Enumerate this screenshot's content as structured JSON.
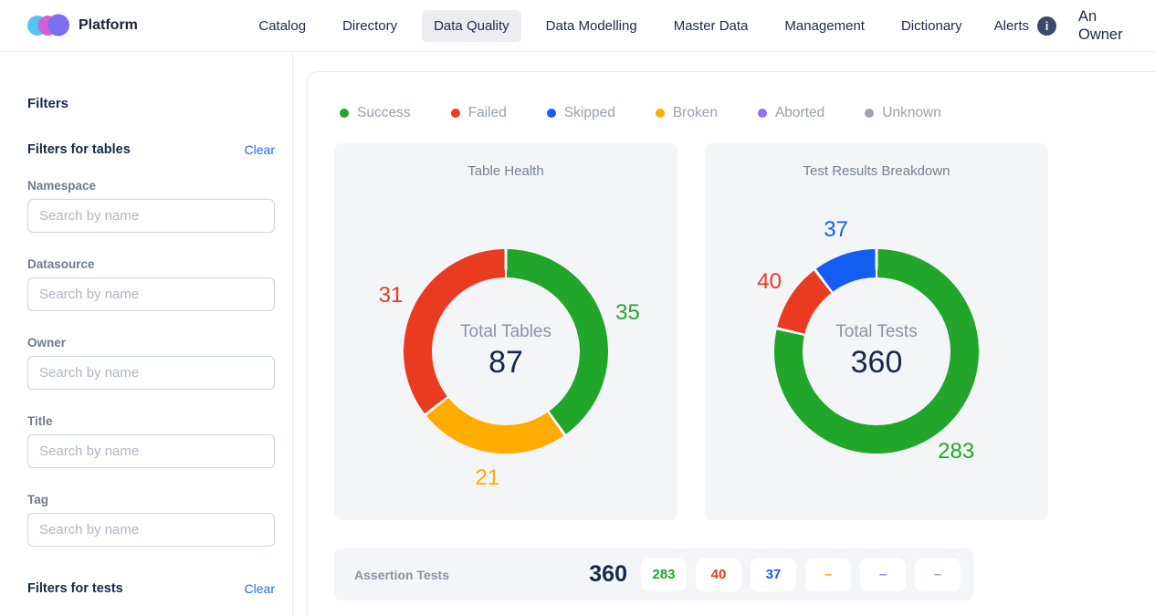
{
  "colors": {
    "link": "#2368E9",
    "navy": "#15294B",
    "border": "#E9EBEF",
    "cardbg": "#F4F5F7",
    "muted": "#8A94A3",
    "legendText": "#98A2AF",
    "fieldLabel": "#6F7B90",
    "navText": "#202C4E",
    "activeTabBg": "#ECEDF1",
    "infoIconBg": "#3A4B69",
    "brandBlue": "#56C3F5",
    "brandPink": "#CE63D8",
    "brandPurple": "#7C6FEF"
  },
  "header": {
    "brand": "Platform",
    "nav": [
      {
        "label": "Catalog",
        "active": false
      },
      {
        "label": "Directory",
        "active": false
      },
      {
        "label": "Data Quality",
        "active": true
      },
      {
        "label": "Data Modelling",
        "active": false
      },
      {
        "label": "Master Data",
        "active": false
      },
      {
        "label": "Management",
        "active": false
      },
      {
        "label": "Dictionary",
        "active": false
      }
    ],
    "alerts_label": "Alerts",
    "user": "An Owner"
  },
  "sidebar": {
    "title": "Filters",
    "sections": [
      {
        "title": "Filters for tables",
        "clear_label": "Clear",
        "fields": [
          {
            "label": "Namespace",
            "placeholder": "Search by name",
            "value": ""
          },
          {
            "label": "Datasource",
            "placeholder": "Search by name",
            "value": ""
          },
          {
            "label": "Owner",
            "placeholder": "Search by name",
            "value": ""
          },
          {
            "label": "Title",
            "placeholder": "Search by name",
            "value": ""
          },
          {
            "label": "Tag",
            "placeholder": "Search by name",
            "value": ""
          }
        ]
      },
      {
        "title": "Filters for tests",
        "clear_label": "Clear",
        "fields": []
      }
    ]
  },
  "legend": [
    {
      "label": "Success",
      "color": "#22A52B"
    },
    {
      "label": "Failed",
      "color": "#EB3A22"
    },
    {
      "label": "Skipped",
      "color": "#135EF0"
    },
    {
      "label": "Broken",
      "color": "#FFAB00"
    },
    {
      "label": "Aborted",
      "color": "#8E70F0"
    },
    {
      "label": "Unknown",
      "color": "#9BA3AF"
    }
  ],
  "chart_data": [
    {
      "type": "donut",
      "title": "Table Health",
      "center_label": "Total Tables",
      "total": 87,
      "start_angle_deg": 0,
      "direction": "clockwise",
      "segments": [
        {
          "label": "Success",
          "value": 35,
          "color": "#22A52B"
        },
        {
          "label": "Broken",
          "value": 21,
          "color": "#FFAB00"
        },
        {
          "label": "Failed",
          "value": 31,
          "color": "#EB3A22"
        }
      ]
    },
    {
      "type": "donut",
      "title": "Test Results Breakdown",
      "center_label": "Total Tests",
      "total": 360,
      "start_angle_deg": 0,
      "direction": "clockwise",
      "segments": [
        {
          "label": "Success",
          "value": 283,
          "color": "#22A52B"
        },
        {
          "label": "Failed",
          "value": 40,
          "color": "#EB3A22"
        },
        {
          "label": "Skipped",
          "value": 37,
          "color": "#135EF0"
        }
      ]
    }
  ],
  "assertion_row": {
    "label": "Assertion Tests",
    "total": "360",
    "badges": [
      {
        "status": "success",
        "text": "283",
        "color": "#22A52B"
      },
      {
        "status": "failed",
        "text": "40",
        "color": "#EB3A22"
      },
      {
        "status": "skipped",
        "text": "37",
        "color": "#135EF0"
      },
      {
        "status": "broken",
        "text": "–",
        "color": "#FFB21E"
      },
      {
        "status": "aborted",
        "text": "–",
        "color": "#9089F0"
      },
      {
        "status": "unknown",
        "text": "–",
        "color": "#A7AEBB"
      }
    ]
  }
}
